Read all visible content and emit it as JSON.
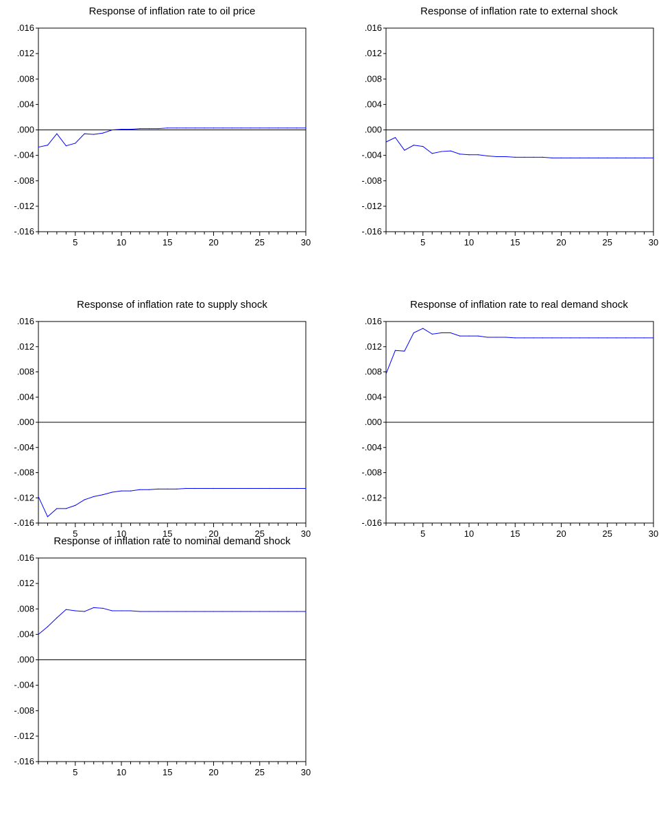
{
  "chart_data": [
    {
      "type": "line",
      "title": "Response of inflation rate to oil price",
      "x": [
        1,
        2,
        3,
        4,
        5,
        6,
        7,
        8,
        9,
        10,
        11,
        12,
        13,
        14,
        15,
        16,
        17,
        18,
        19,
        20,
        21,
        22,
        23,
        24,
        25,
        26,
        27,
        28,
        29,
        30
      ],
      "series": [
        {
          "color": "#0000ff",
          "values": [
            -0.0027,
            -0.0024,
            -0.0006,
            -0.0025,
            -0.0021,
            -0.0006,
            -0.0007,
            -0.0005,
            0.0,
            0.0001,
            0.0001,
            0.0002,
            0.0002,
            0.0002,
            0.0003,
            0.0003,
            0.0003,
            0.0003,
            0.0003,
            0.0003,
            0.0003,
            0.0003,
            0.0003,
            0.0003,
            0.0003,
            0.0003,
            0.0003,
            0.0003,
            0.0003,
            0.0003
          ]
        }
      ],
      "xticks": [
        5,
        10,
        15,
        20,
        25,
        30
      ],
      "yticks": [
        ".016",
        ".012",
        ".008",
        ".004",
        ".000",
        "-.004",
        "-.008",
        "-.012",
        "-.016"
      ],
      "ylim": [
        -0.016,
        0.016
      ],
      "zero_line": true,
      "grid": false
    },
    {
      "type": "line",
      "title": "Response of inflation rate to external shock",
      "x": [
        1,
        2,
        3,
        4,
        5,
        6,
        7,
        8,
        9,
        10,
        11,
        12,
        13,
        14,
        15,
        16,
        17,
        18,
        19,
        20,
        21,
        22,
        23,
        24,
        25,
        26,
        27,
        28,
        29,
        30
      ],
      "series": [
        {
          "color": "#0000ff",
          "values": [
            -0.0019,
            -0.0012,
            -0.0032,
            -0.0024,
            -0.0026,
            -0.0037,
            -0.0034,
            -0.0033,
            -0.0038,
            -0.0039,
            -0.0039,
            -0.0041,
            -0.0042,
            -0.0042,
            -0.0043,
            -0.0043,
            -0.0043,
            -0.0043,
            -0.0044,
            -0.0044,
            -0.0044,
            -0.0044,
            -0.0044,
            -0.0044,
            -0.0044,
            -0.0044,
            -0.0044,
            -0.0044,
            -0.0044,
            -0.0044
          ]
        }
      ],
      "xticks": [
        5,
        10,
        15,
        20,
        25,
        30
      ],
      "yticks": [
        ".016",
        ".012",
        ".008",
        ".004",
        ".000",
        "-.004",
        "-.008",
        "-.012",
        "-.016"
      ],
      "ylim": [
        -0.016,
        0.016
      ],
      "zero_line": true,
      "grid": false
    },
    {
      "type": "line",
      "title": "Response of inflation rate to supply shock",
      "x": [
        1,
        2,
        3,
        4,
        5,
        6,
        7,
        8,
        9,
        10,
        11,
        12,
        13,
        14,
        15,
        16,
        17,
        18,
        19,
        20,
        21,
        22,
        23,
        24,
        25,
        26,
        27,
        28,
        29,
        30
      ],
      "series": [
        {
          "color": "#0000ff",
          "values": [
            -0.0118,
            -0.015,
            -0.0137,
            -0.0137,
            -0.0132,
            -0.0123,
            -0.0118,
            -0.0115,
            -0.0111,
            -0.0109,
            -0.0109,
            -0.0107,
            -0.0107,
            -0.0106,
            -0.0106,
            -0.0106,
            -0.0105,
            -0.0105,
            -0.0105,
            -0.0105,
            -0.0105,
            -0.0105,
            -0.0105,
            -0.0105,
            -0.0105,
            -0.0105,
            -0.0105,
            -0.0105,
            -0.0105,
            -0.0105
          ]
        }
      ],
      "xticks": [
        5,
        10,
        15,
        20,
        25,
        30
      ],
      "yticks": [
        ".016",
        ".012",
        ".008",
        ".004",
        ".000",
        "-.004",
        "-.008",
        "-.012",
        "-.016"
      ],
      "ylim": [
        -0.016,
        0.016
      ],
      "zero_line": true,
      "grid": false
    },
    {
      "type": "line",
      "title": "Response of inflation rate to real demand shock",
      "x": [
        1,
        2,
        3,
        4,
        5,
        6,
        7,
        8,
        9,
        10,
        11,
        12,
        13,
        14,
        15,
        16,
        17,
        18,
        19,
        20,
        21,
        22,
        23,
        24,
        25,
        26,
        27,
        28,
        29,
        30
      ],
      "series": [
        {
          "color": "#0000ff",
          "values": [
            0.0077,
            0.0114,
            0.0113,
            0.0142,
            0.0149,
            0.014,
            0.0142,
            0.0142,
            0.0137,
            0.0137,
            0.0137,
            0.0135,
            0.0135,
            0.0135,
            0.0134,
            0.0134,
            0.0134,
            0.0134,
            0.0134,
            0.0134,
            0.0134,
            0.0134,
            0.0134,
            0.0134,
            0.0134,
            0.0134,
            0.0134,
            0.0134,
            0.0134,
            0.0134
          ]
        }
      ],
      "xticks": [
        5,
        10,
        15,
        20,
        25,
        30
      ],
      "yticks": [
        ".016",
        ".012",
        ".008",
        ".004",
        ".000",
        "-.004",
        "-.008",
        "-.012",
        "-.016"
      ],
      "ylim": [
        -0.016,
        0.016
      ],
      "zero_line": true,
      "grid": false
    },
    {
      "type": "line",
      "title": "Response of inflation rate to nominal demand shock",
      "x": [
        1,
        2,
        3,
        4,
        5,
        6,
        7,
        8,
        9,
        10,
        11,
        12,
        13,
        14,
        15,
        16,
        17,
        18,
        19,
        20,
        21,
        22,
        23,
        24,
        25,
        26,
        27,
        28,
        29,
        30
      ],
      "series": [
        {
          "color": "#0000ff",
          "values": [
            0.004,
            0.0052,
            0.0066,
            0.0079,
            0.0077,
            0.0076,
            0.0082,
            0.0081,
            0.0077,
            0.0077,
            0.0077,
            0.0076,
            0.0076,
            0.0076,
            0.0076,
            0.0076,
            0.0076,
            0.0076,
            0.0076,
            0.0076,
            0.0076,
            0.0076,
            0.0076,
            0.0076,
            0.0076,
            0.0076,
            0.0076,
            0.0076,
            0.0076,
            0.0076
          ]
        }
      ],
      "xticks": [
        5,
        10,
        15,
        20,
        25,
        30
      ],
      "yticks": [
        ".016",
        ".012",
        ".008",
        ".004",
        ".000",
        "-.004",
        "-.008",
        "-.012",
        "-.016"
      ],
      "ylim": [
        -0.016,
        0.016
      ],
      "zero_line": true,
      "grid": false
    }
  ]
}
